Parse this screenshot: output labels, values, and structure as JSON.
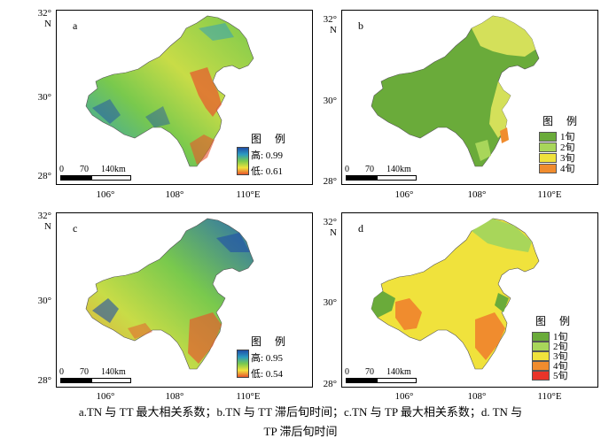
{
  "panels": {
    "a": {
      "letter": "a",
      "legend_title": "图 例",
      "high": "高: 0.99",
      "low": "低: 0.61"
    },
    "b": {
      "letter": "b",
      "legend_title": "图 例",
      "classes": [
        "1旬",
        "2旬",
        "3旬",
        "4旬"
      ]
    },
    "c": {
      "letter": "c",
      "legend_title": "图 例",
      "high": "高: 0.95",
      "low": "低: 0.54"
    },
    "d": {
      "letter": "d",
      "legend_title": "图 例",
      "classes": [
        "1旬",
        "2旬",
        "3旬",
        "4旬",
        "5旬"
      ]
    }
  },
  "axes": {
    "lat_32": "32°",
    "lat_n": "N",
    "lat_30": "30°",
    "lat_28": "28°",
    "lon_106": "106°",
    "lon_108": "108°",
    "lon_110": "110°E"
  },
  "scalebar": {
    "zero": "0",
    "mid": "70",
    "end": "140km"
  },
  "class_colors": [
    "#6aab3a",
    "#a8d65a",
    "#f0e23c",
    "#f08c2e",
    "#e8342a"
  ],
  "caption_line1": "a.TN 与 TT 最大相关系数；b.TN 与 TT 滞后旬时间；c.TN 与 TP 最大相关系数；d. TN 与",
  "caption_line2": "TP 滞后旬时间"
}
